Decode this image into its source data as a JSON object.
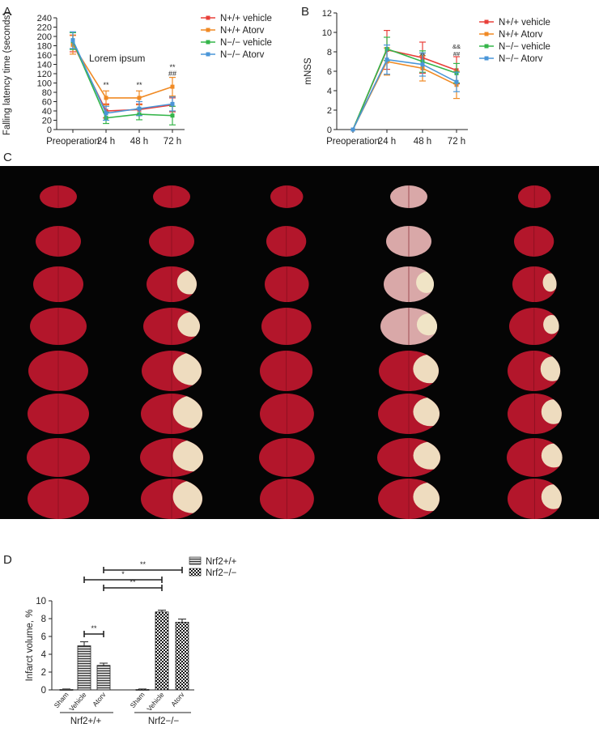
{
  "panel_labels": {
    "a": "A",
    "b": "B",
    "c": "C",
    "d": "D"
  },
  "colors": {
    "n_wt_vehicle": "#e8403a",
    "n_wt_atorv": "#f08a24",
    "n_ko_vehicle": "#35b54a",
    "n_ko_atorv": "#4a96d8",
    "tissue_red": "#b3162b",
    "infarct_pale": "#f1e7c7"
  },
  "chart_data": [
    {
      "id": "A",
      "type": "line",
      "title": "",
      "xlabel": "",
      "ylabel": "Falling latency time (seconds)",
      "categories": [
        "Preoperation",
        "24 h",
        "48 h",
        "72 h"
      ],
      "ylim": [
        0,
        240
      ],
      "yticks": [
        0,
        20,
        40,
        60,
        80,
        100,
        120,
        140,
        160,
        180,
        200,
        220,
        240
      ],
      "legend_position": "top-right",
      "annotation": "Lorem ipsum",
      "series": [
        {
          "name": "N+/+ vehicle",
          "color_key": "n_wt_vehicle",
          "values": [
            185,
            40,
            43,
            53
          ],
          "errors": [
            18,
            15,
            12,
            15
          ]
        },
        {
          "name": "N+/+ Atorv",
          "color_key": "n_wt_atorv",
          "values": [
            182,
            68,
            68,
            92
          ],
          "errors": [
            20,
            15,
            15,
            20
          ]
        },
        {
          "name": "N−/− vehicle",
          "color_key": "n_ko_vehicle",
          "values": [
            190,
            25,
            33,
            30
          ],
          "errors": [
            18,
            12,
            12,
            20
          ]
        },
        {
          "name": "N−/− Atorv",
          "color_key": "n_ko_atorv",
          "values": [
            192,
            35,
            45,
            55
          ],
          "errors": [
            18,
            15,
            15,
            15
          ]
        }
      ],
      "sig_marks": [
        {
          "category": "24 h",
          "lines": [
            "**"
          ]
        },
        {
          "category": "48 h",
          "lines": [
            "**"
          ]
        },
        {
          "category": "72 h",
          "lines": [
            "**",
            "##"
          ]
        }
      ]
    },
    {
      "id": "B",
      "type": "line",
      "title": "",
      "xlabel": "",
      "ylabel": "mNSS",
      "categories": [
        "Preoperation",
        "24 h",
        "48 h",
        "72 h"
      ],
      "ylim": [
        0,
        12
      ],
      "yticks": [
        0,
        2,
        4,
        6,
        8,
        10,
        12
      ],
      "legend_position": "top-right",
      "series": [
        {
          "name": "N+/+ vehicle",
          "color_key": "n_wt_vehicle",
          "values": [
            0,
            8.2,
            7.4,
            6.1
          ],
          "errors": [
            0,
            2.0,
            1.6,
            1.4
          ]
        },
        {
          "name": "N+/+ Atorv",
          "color_key": "n_wt_atorv",
          "values": [
            0,
            7.0,
            6.3,
            4.6
          ],
          "errors": [
            0,
            1.4,
            1.3,
            1.4
          ]
        },
        {
          "name": "N−/− vehicle",
          "color_key": "n_ko_vehicle",
          "values": [
            0,
            8.3,
            7.0,
            5.8
          ],
          "errors": [
            0,
            1.2,
            1.1,
            1.0
          ]
        },
        {
          "name": "N−/− Atorv",
          "color_key": "n_ko_atorv",
          "values": [
            0,
            7.2,
            6.7,
            4.9
          ],
          "errors": [
            0,
            1.5,
            1.2,
            1.0
          ]
        }
      ],
      "sig_marks": [
        {
          "category": "48 h",
          "lines": [
            "**"
          ]
        },
        {
          "category": "72 h",
          "lines": [
            "&&",
            "##"
          ]
        }
      ]
    },
    {
      "id": "D",
      "type": "bar",
      "title": "",
      "xlabel": "",
      "ylabel": "Infarct volume, %",
      "ylim": [
        0,
        10
      ],
      "yticks": [
        0,
        2,
        4,
        6,
        8,
        10
      ],
      "legend_position": "top-right",
      "legend": [
        "Nrf2+/+",
        "Nrf2−/−"
      ],
      "categories": [
        "Sham",
        "Vehicle",
        "Atorv",
        "Sham",
        "Vehicle",
        "Atorv"
      ],
      "groups": [
        {
          "name": "Nrf2+/+",
          "values": [
            0.05,
            4.95,
            2.75
          ],
          "errors": [
            0.05,
            0.45,
            0.25
          ]
        },
        {
          "name": "Nrf2−/−",
          "values": [
            0.05,
            8.75,
            7.6
          ],
          "errors": [
            0.05,
            0.2,
            0.35
          ]
        }
      ],
      "brackets": [
        {
          "from_bar": 1,
          "to_bar": 2,
          "label": "**"
        },
        {
          "from_bar": 1,
          "to_bar": 4,
          "label": "*"
        },
        {
          "from_bar": 2,
          "to_bar": 4,
          "label": "**"
        },
        {
          "from_bar": 2,
          "to_bar": 5,
          "label": "**"
        }
      ]
    }
  ]
}
